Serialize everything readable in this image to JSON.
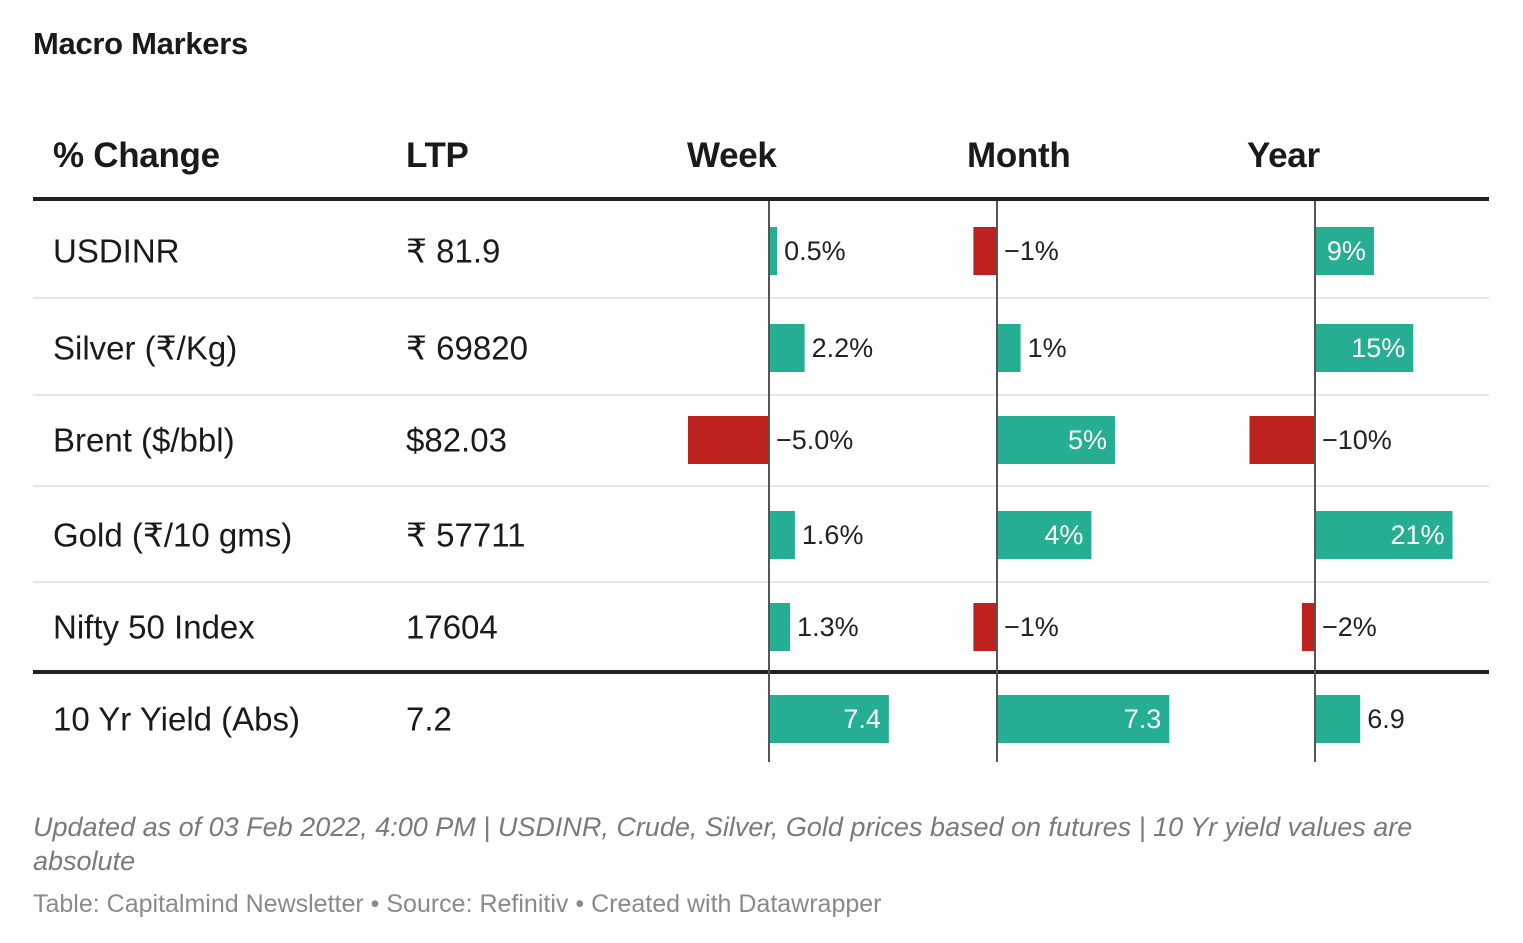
{
  "title": "Macro Markers",
  "columns": {
    "label": "% Change",
    "ltp": "LTP",
    "week": "Week",
    "month": "Month",
    "year": "Year"
  },
  "colors": {
    "positive": "#26ae92",
    "negative": "#be221e",
    "rule_heavy": "#222222",
    "rule_light": "#e6e6e6"
  },
  "chart_data": {
    "type": "table",
    "title": "Macro Markers",
    "value_columns": [
      "Week",
      "Month",
      "Year"
    ],
    "rows": [
      {
        "name": "USDINR",
        "ltp": "₹ 81.9",
        "week": {
          "value": 0.5,
          "label": "0.5%"
        },
        "month": {
          "value": -1,
          "label": "−1%"
        },
        "year": {
          "value": 9,
          "label": "9%"
        }
      },
      {
        "name": "Silver (₹/Kg)",
        "ltp": "₹ 69820",
        "week": {
          "value": 2.2,
          "label": "2.2%"
        },
        "month": {
          "value": 1,
          "label": "1%"
        },
        "year": {
          "value": 15,
          "label": "15%"
        }
      },
      {
        "name": "Brent ($/bbl)",
        "ltp": "$82.03",
        "week": {
          "value": -5.0,
          "label": "−5.0%"
        },
        "month": {
          "value": 5,
          "label": "5%"
        },
        "year": {
          "value": -10,
          "label": "−10%"
        }
      },
      {
        "name": "Gold (₹/10 gms)",
        "ltp": "₹ 57711",
        "week": {
          "value": 1.6,
          "label": "1.6%"
        },
        "month": {
          "value": 4,
          "label": "4%"
        },
        "year": {
          "value": 21,
          "label": "21%"
        }
      },
      {
        "name": "Nifty 50 Index",
        "ltp": "17604",
        "week": {
          "value": 1.3,
          "label": "1.3%"
        },
        "month": {
          "value": -1,
          "label": "−1%"
        },
        "year": {
          "value": -2,
          "label": "−2%"
        }
      },
      {
        "name": "10 Yr Yield (Abs)",
        "ltp": "7.2",
        "week": {
          "value": 7.4,
          "label": "7.4"
        },
        "month": {
          "value": 7.3,
          "label": "7.3"
        },
        "year": {
          "value": 6.9,
          "label": "6.9"
        }
      }
    ]
  },
  "footer": {
    "note": "Updated as of 03 Feb 2022, 4:00 PM | USDINR, Crude, Silver, Gold prices based on futures | 10 Yr yield values are absolute",
    "credit_table": "Table: Capitalmind Newsletter",
    "credit_source": "Source: Refinitiv",
    "credit_tool": "Created with Datawrapper",
    "separator": "•"
  }
}
